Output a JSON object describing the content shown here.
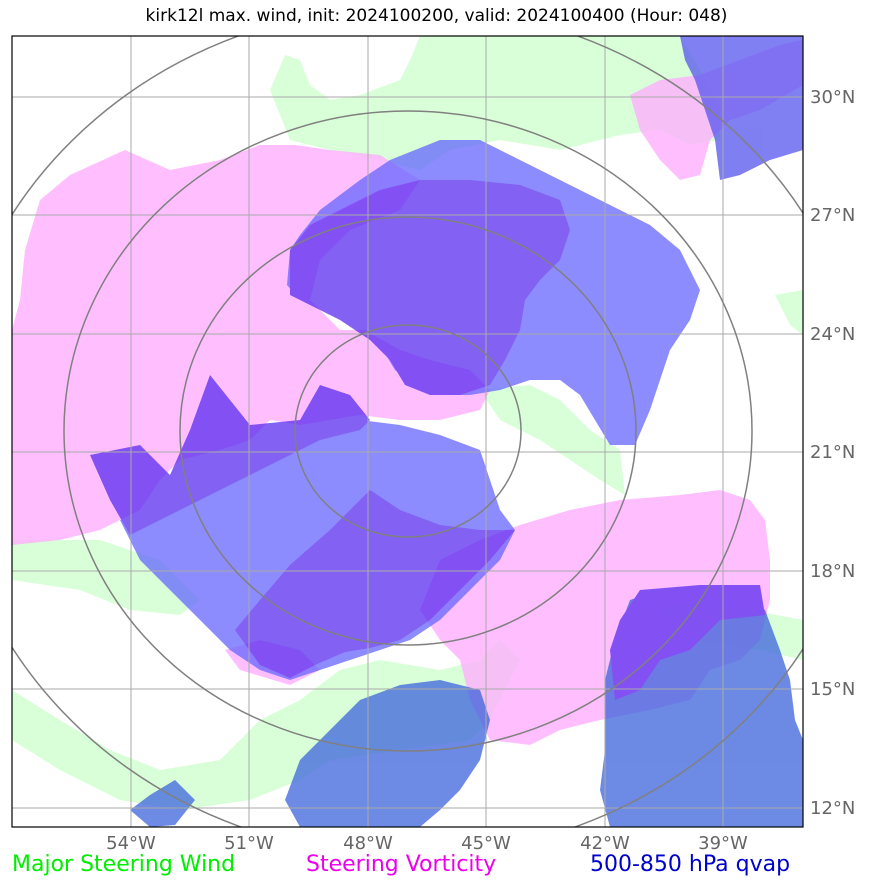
{
  "title": "kirk12l max. wind, init: 2024100200, valid: 2024100400 (Hour: 048)",
  "map": {
    "lon_range": [
      -57,
      -37
    ],
    "lat_range": [
      11.5,
      31.5
    ],
    "lat_ticks": [
      {
        "value": 30,
        "label": "30°N"
      },
      {
        "value": 27,
        "label": "27°N"
      },
      {
        "value": 24,
        "label": "24°N"
      },
      {
        "value": 21,
        "label": "21°N"
      },
      {
        "value": 18,
        "label": "18°N"
      },
      {
        "value": 15,
        "label": "15°N"
      },
      {
        "value": 12,
        "label": "12°N"
      }
    ],
    "lon_ticks": [
      {
        "value": -54,
        "label": "54°W"
      },
      {
        "value": -51,
        "label": "51°W"
      },
      {
        "value": -48,
        "label": "48°W"
      },
      {
        "value": -45,
        "label": "45°W"
      },
      {
        "value": -42,
        "label": "42°W"
      },
      {
        "value": -39,
        "label": "39°W"
      }
    ],
    "range_rings_center": {
      "lon": -47.1,
      "lat": 22.0
    },
    "colors": {
      "wind": "#ccffcc",
      "vorticity": "#ffaaff",
      "qvap_light": "#8080ff",
      "qvap_dark": "#5050dd",
      "grid": "#aaaaaa",
      "rings": "#808080"
    }
  },
  "legend": {
    "wind": {
      "label": "Major Steering Wind",
      "color": "#00ee00"
    },
    "vorticity": {
      "label": "Steering Vorticity",
      "color": "#ee00ee"
    },
    "qvap": {
      "label": "500-850 hPa qvap",
      "color": "#0000cc"
    }
  }
}
